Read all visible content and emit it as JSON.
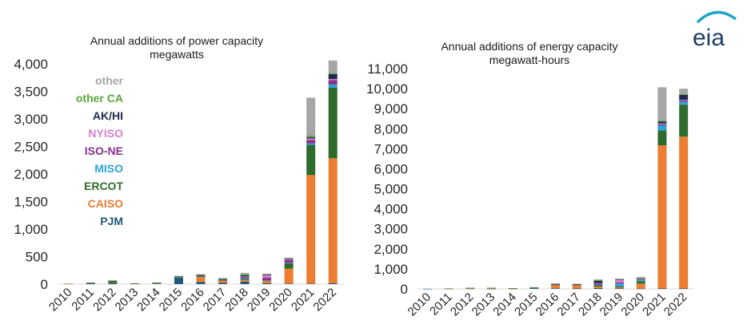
{
  "logo": {
    "text": "eia",
    "color": "#1f3e66",
    "arc_color": "#1aa6c6",
    "icon": "eia-logo"
  },
  "colors": {
    "PJM": "#1f5a78",
    "CAISO": "#ed7d31",
    "ERCOT": "#2e6b2c",
    "MISO": "#2aa3d8",
    "ISO-NE": "#8a2f8a",
    "NYISO": "#d67fd0",
    "AK/HI": "#1c2a4d",
    "other CA": "#5aa63a",
    "other": "#a6a6a6"
  },
  "chart_data": [
    {
      "type": "bar",
      "stacked": true,
      "title": "Annual additions of power capacity",
      "subtitle": "megawatts",
      "xlabel": "",
      "ylabel": "",
      "ylim": [
        0,
        4000
      ],
      "yticks": [
        "0",
        "500",
        "1,000",
        "1,500",
        "2,000",
        "2,500",
        "3,000",
        "3,500",
        "4,000"
      ],
      "grid": false,
      "legend": "upper-left",
      "legend_order": [
        "other",
        "other CA",
        "AK/HI",
        "NYISO",
        "ISO-NE",
        "MISO",
        "ERCOT",
        "CAISO",
        "PJM"
      ],
      "categories": [
        "2010",
        "2011",
        "2012",
        "2013",
        "2014",
        "2015",
        "2016",
        "2017",
        "2018",
        "2019",
        "2020",
        "2021",
        "2022"
      ],
      "series": [
        {
          "name": "PJM",
          "values": [
            8,
            20,
            25,
            8,
            10,
            120,
            40,
            25,
            45,
            15,
            10,
            10,
            15
          ]
        },
        {
          "name": "CAISO",
          "values": [
            2,
            2,
            4,
            3,
            10,
            10,
            90,
            40,
            30,
            40,
            270,
            1970,
            2270
          ]
        },
        {
          "name": "ERCOT",
          "values": [
            0,
            5,
            35,
            2,
            0,
            3,
            10,
            15,
            20,
            10,
            100,
            550,
            1280
          ]
        },
        {
          "name": "MISO",
          "values": [
            0,
            0,
            0,
            0,
            0,
            5,
            5,
            5,
            15,
            5,
            10,
            25,
            60
          ]
        },
        {
          "name": "ISO-NE",
          "values": [
            0,
            0,
            0,
            0,
            0,
            0,
            5,
            5,
            20,
            45,
            50,
            60,
            80
          ]
        },
        {
          "name": "NYISO",
          "values": [
            0,
            0,
            0,
            0,
            0,
            0,
            0,
            0,
            10,
            55,
            15,
            30,
            20
          ]
        },
        {
          "name": "AK/HI",
          "values": [
            0,
            0,
            0,
            0,
            5,
            5,
            15,
            10,
            20,
            5,
            10,
            20,
            90
          ]
        },
        {
          "name": "other CA",
          "values": [
            0,
            0,
            0,
            0,
            5,
            5,
            10,
            5,
            20,
            10,
            10,
            30,
            20
          ]
        },
        {
          "name": "other",
          "values": [
            0,
            0,
            0,
            0,
            0,
            2,
            5,
            5,
            25,
            5,
            5,
            690,
            225
          ]
        }
      ]
    },
    {
      "type": "bar",
      "stacked": true,
      "title": "Annual additions of energy capacity",
      "subtitle": "megawatt-hours",
      "xlabel": "",
      "ylabel": "",
      "ylim": [
        0,
        11000
      ],
      "yticks": [
        "0",
        "1,000",
        "2,000",
        "3,000",
        "4,000",
        "5,000",
        "6,000",
        "7,000",
        "8,000",
        "9,000",
        "10,000",
        "11,000"
      ],
      "grid": false,
      "categories": [
        "2010",
        "2011",
        "2012",
        "2013",
        "2014",
        "2015",
        "2016",
        "2017",
        "2018",
        "2019",
        "2020",
        "2021",
        "2022"
      ],
      "series": [
        {
          "name": "PJM",
          "values": [
            5,
            10,
            15,
            10,
            10,
            40,
            30,
            20,
            40,
            20,
            15,
            20,
            20
          ]
        },
        {
          "name": "CAISO",
          "values": [
            0,
            5,
            20,
            40,
            10,
            10,
            160,
            160,
            80,
            60,
            250,
            7150,
            7580
          ]
        },
        {
          "name": "ERCOT",
          "values": [
            0,
            5,
            20,
            5,
            0,
            5,
            20,
            20,
            60,
            40,
            120,
            750,
            1600
          ]
        },
        {
          "name": "MISO",
          "values": [
            0,
            0,
            0,
            0,
            0,
            5,
            10,
            10,
            40,
            150,
            60,
            250,
            150
          ]
        },
        {
          "name": "ISO-NE",
          "values": [
            0,
            0,
            0,
            0,
            0,
            0,
            10,
            10,
            60,
            60,
            30,
            40,
            60
          ]
        },
        {
          "name": "NYISO",
          "values": [
            0,
            0,
            0,
            0,
            0,
            0,
            0,
            0,
            20,
            130,
            20,
            50,
            30
          ]
        },
        {
          "name": "AK/HI",
          "values": [
            0,
            0,
            0,
            0,
            10,
            10,
            20,
            20,
            100,
            10,
            10,
            100,
            250
          ]
        },
        {
          "name": "other CA",
          "values": [
            0,
            0,
            0,
            0,
            10,
            10,
            20,
            10,
            40,
            20,
            40,
            60,
            40
          ]
        },
        {
          "name": "other",
          "values": [
            0,
            0,
            0,
            0,
            0,
            10,
            10,
            10,
            40,
            30,
            55,
            1650,
            270
          ]
        }
      ]
    }
  ]
}
